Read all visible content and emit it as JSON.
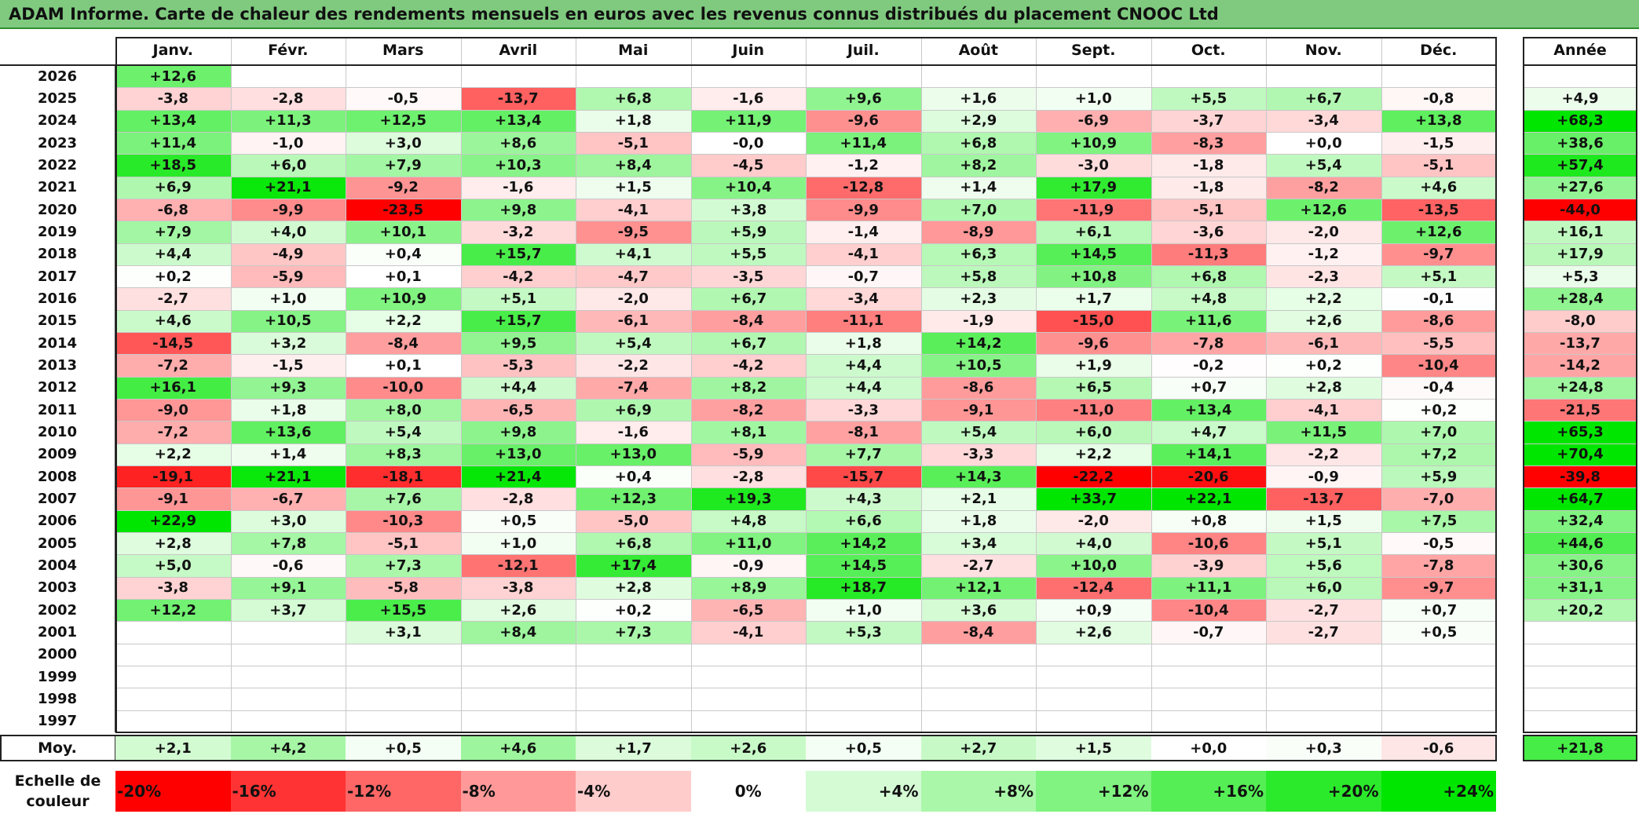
{
  "title": "ADAM Informe. Carte de chaleur des rendements mensuels en euros avec les revenus connus distribués du placement CNOOC Ltd",
  "chart_data": {
    "type": "heatmap",
    "title": "ADAM Informe. Carte de chaleur des rendements mensuels en euros avec les revenus connus distribués du placement CNOOC Ltd",
    "columns": [
      "Janv.",
      "Févr.",
      "Mars",
      "Avril",
      "Mai",
      "Juin",
      "Juil.",
      "Août",
      "Sept.",
      "Oct.",
      "Nov.",
      "Déc."
    ],
    "year_column_label": "Année",
    "rows": [
      {
        "year": "2026",
        "months": [
          "+12,6",
          null,
          null,
          null,
          null,
          null,
          null,
          null,
          null,
          null,
          null,
          null
        ],
        "annual": null
      },
      {
        "year": "2025",
        "months": [
          "-3,8",
          "-2,8",
          "-0,5",
          "-13,7",
          "+6,8",
          "-1,6",
          "+9,6",
          "+1,6",
          "+1,0",
          "+5,5",
          "+6,7",
          "-0,8"
        ],
        "annual": "+4,9"
      },
      {
        "year": "2024",
        "months": [
          "+13,4",
          "+11,3",
          "+12,5",
          "+13,4",
          "+1,8",
          "+11,9",
          "-9,6",
          "+2,9",
          "-6,9",
          "-3,7",
          "-3,4",
          "+13,8"
        ],
        "annual": "+68,3"
      },
      {
        "year": "2023",
        "months": [
          "+11,4",
          "-1,0",
          "+3,0",
          "+8,6",
          "-5,1",
          "-0,0",
          "+11,4",
          "+6,8",
          "+10,9",
          "-8,3",
          "+0,0",
          "-1,5"
        ],
        "annual": "+38,6"
      },
      {
        "year": "2022",
        "months": [
          "+18,5",
          "+6,0",
          "+7,9",
          "+10,3",
          "+8,4",
          "-4,5",
          "-1,2",
          "+8,2",
          "-3,0",
          "-1,8",
          "+5,4",
          "-5,1"
        ],
        "annual": "+57,4"
      },
      {
        "year": "2021",
        "months": [
          "+6,9",
          "+21,1",
          "-9,2",
          "-1,6",
          "+1,5",
          "+10,4",
          "-12,8",
          "+1,4",
          "+17,9",
          "-1,8",
          "-8,2",
          "+4,6"
        ],
        "annual": "+27,6"
      },
      {
        "year": "2020",
        "months": [
          "-6,8",
          "-9,9",
          "-23,5",
          "+9,8",
          "-4,1",
          "+3,8",
          "-9,9",
          "+7,0",
          "-11,9",
          "-5,1",
          "+12,6",
          "-13,5"
        ],
        "annual": "-44,0"
      },
      {
        "year": "2019",
        "months": [
          "+7,9",
          "+4,0",
          "+10,1",
          "-3,2",
          "-9,5",
          "+5,9",
          "-1,4",
          "-8,9",
          "+6,1",
          "-3,6",
          "-2,0",
          "+12,6"
        ],
        "annual": "+16,1"
      },
      {
        "year": "2018",
        "months": [
          "+4,4",
          "-4,9",
          "+0,4",
          "+15,7",
          "+4,1",
          "+5,5",
          "-4,1",
          "+6,3",
          "+14,5",
          "-11,3",
          "-1,2",
          "-9,7"
        ],
        "annual": "+17,9"
      },
      {
        "year": "2017",
        "months": [
          "+0,2",
          "-5,9",
          "+0,1",
          "-4,2",
          "-4,7",
          "-3,5",
          "-0,7",
          "+5,8",
          "+10,8",
          "+6,8",
          "-2,3",
          "+5,1"
        ],
        "annual": "+5,3"
      },
      {
        "year": "2016",
        "months": [
          "-2,7",
          "+1,0",
          "+10,9",
          "+5,1",
          "-2,0",
          "+6,7",
          "-3,4",
          "+2,3",
          "+1,7",
          "+4,8",
          "+2,2",
          "-0,1"
        ],
        "annual": "+28,4"
      },
      {
        "year": "2015",
        "months": [
          "+4,6",
          "+10,5",
          "+2,2",
          "+15,7",
          "-6,1",
          "-8,4",
          "-11,1",
          "-1,9",
          "-15,0",
          "+11,6",
          "+2,6",
          "-8,6"
        ],
        "annual": "-8,0"
      },
      {
        "year": "2014",
        "months": [
          "-14,5",
          "+3,2",
          "-8,4",
          "+9,5",
          "+5,4",
          "+6,7",
          "+1,8",
          "+14,2",
          "-9,6",
          "-7,8",
          "-6,1",
          "-5,5"
        ],
        "annual": "-13,7"
      },
      {
        "year": "2013",
        "months": [
          "-7,2",
          "-1,5",
          "+0,1",
          "-5,3",
          "-2,2",
          "-4,2",
          "+4,4",
          "+10,5",
          "+1,9",
          "-0,2",
          "+0,2",
          "-10,4"
        ],
        "annual": "-14,2"
      },
      {
        "year": "2012",
        "months": [
          "+16,1",
          "+9,3",
          "-10,0",
          "+4,4",
          "-7,4",
          "+8,2",
          "+4,4",
          "-8,6",
          "+6,5",
          "+0,7",
          "+2,8",
          "-0,4"
        ],
        "annual": "+24,8"
      },
      {
        "year": "2011",
        "months": [
          "-9,0",
          "+1,8",
          "+8,0",
          "-6,5",
          "+6,9",
          "-8,2",
          "-3,3",
          "-9,1",
          "-11,0",
          "+13,4",
          "-4,1",
          "+0,2"
        ],
        "annual": "-21,5"
      },
      {
        "year": "2010",
        "months": [
          "-7,2",
          "+13,6",
          "+5,4",
          "+9,8",
          "-1,6",
          "+8,1",
          "-8,1",
          "+5,4",
          "+6,0",
          "+4,7",
          "+11,5",
          "+7,0"
        ],
        "annual": "+65,3"
      },
      {
        "year": "2009",
        "months": [
          "+2,2",
          "+1,4",
          "+8,3",
          "+13,0",
          "+13,0",
          "-5,9",
          "+7,7",
          "-3,3",
          "+2,2",
          "+14,1",
          "-2,2",
          "+7,2"
        ],
        "annual": "+70,4"
      },
      {
        "year": "2008",
        "months": [
          "-19,1",
          "+21,1",
          "-18,1",
          "+21,4",
          "+0,4",
          "-2,8",
          "-15,7",
          "+14,3",
          "-22,2",
          "-20,6",
          "-0,9",
          "+5,9"
        ],
        "annual": "-39,8"
      },
      {
        "year": "2007",
        "months": [
          "-9,1",
          "-6,7",
          "+7,6",
          "-2,8",
          "+12,3",
          "+19,3",
          "+4,3",
          "+2,1",
          "+33,7",
          "+22,1",
          "-13,7",
          "-7,0"
        ],
        "annual": "+64,7"
      },
      {
        "year": "2006",
        "months": [
          "+22,9",
          "+3,0",
          "-10,3",
          "+0,5",
          "-5,0",
          "+4,8",
          "+6,6",
          "+1,8",
          "-2,0",
          "+0,8",
          "+1,5",
          "+7,5"
        ],
        "annual": "+32,4"
      },
      {
        "year": "2005",
        "months": [
          "+2,8",
          "+7,8",
          "-5,1",
          "+1,0",
          "+6,8",
          "+11,0",
          "+14,2",
          "+3,4",
          "+4,0",
          "-10,6",
          "+5,1",
          "-0,5"
        ],
        "annual": "+44,6"
      },
      {
        "year": "2004",
        "months": [
          "+5,0",
          "-0,6",
          "+7,3",
          "-12,1",
          "+17,4",
          "-0,9",
          "+14,5",
          "-2,7",
          "+10,0",
          "-3,9",
          "+5,6",
          "-7,8"
        ],
        "annual": "+30,6"
      },
      {
        "year": "2003",
        "months": [
          "-3,8",
          "+9,1",
          "-5,8",
          "-3,8",
          "+2,8",
          "+8,9",
          "+18,7",
          "+12,1",
          "-12,4",
          "+11,1",
          "+6,0",
          "-9,7"
        ],
        "annual": "+31,1"
      },
      {
        "year": "2002",
        "months": [
          "+12,2",
          "+3,7",
          "+15,5",
          "+2,6",
          "+0,2",
          "-6,5",
          "+1,0",
          "+3,6",
          "+0,9",
          "-10,4",
          "-2,7",
          "+0,7"
        ],
        "annual": "+20,2"
      },
      {
        "year": "2001",
        "months": [
          null,
          null,
          "+3,1",
          "+8,4",
          "+7,3",
          "-4,1",
          "+5,3",
          "-8,4",
          "+2,6",
          "-0,7",
          "-2,7",
          "+0,5"
        ],
        "annual": null
      },
      {
        "year": "2000",
        "months": [
          null,
          null,
          null,
          null,
          null,
          null,
          null,
          null,
          null,
          null,
          null,
          null
        ],
        "annual": null
      },
      {
        "year": "1999",
        "months": [
          null,
          null,
          null,
          null,
          null,
          null,
          null,
          null,
          null,
          null,
          null,
          null
        ],
        "annual": null
      },
      {
        "year": "1998",
        "months": [
          null,
          null,
          null,
          null,
          null,
          null,
          null,
          null,
          null,
          null,
          null,
          null
        ],
        "annual": null
      },
      {
        "year": "1997",
        "months": [
          null,
          null,
          null,
          null,
          null,
          null,
          null,
          null,
          null,
          null,
          null,
          null
        ],
        "annual": null
      }
    ],
    "average": {
      "label": "Moy.",
      "months": [
        "+2,1",
        "+4,2",
        "+0,5",
        "+4,6",
        "+1,7",
        "+2,6",
        "+0,5",
        "+2,7",
        "+1,5",
        "+0,0",
        "+0,3",
        "-0,6"
      ],
      "annual": "+21,8"
    },
    "color_scale": {
      "label": "Echelle de couleur",
      "stops": [
        "-20%",
        "-16%",
        "-12%",
        "-8%",
        "-4%",
        "0%",
        "+4%",
        "+8%",
        "+12%",
        "+16%",
        "+20%",
        "+24%"
      ],
      "stop_values": [
        -20,
        -16,
        -12,
        -8,
        -4,
        0,
        4,
        8,
        12,
        16,
        20,
        24
      ],
      "negative_color": "#ff0000",
      "positive_color": "#00e600",
      "neutral_color": "#ffffff"
    }
  }
}
